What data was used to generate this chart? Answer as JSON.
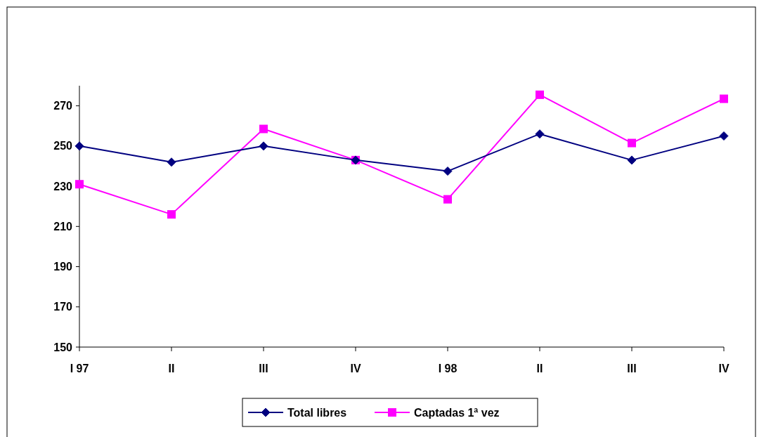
{
  "chart_data": {
    "type": "line",
    "categories": [
      "I 97",
      "II",
      "III",
      "IV",
      "I 98",
      "II",
      "III",
      "IV"
    ],
    "series": [
      {
        "name": "Total libres",
        "color": "#000080",
        "marker": "diamond",
        "values": [
          250,
          242,
          250,
          243,
          237.5,
          256,
          243,
          255
        ]
      },
      {
        "name": "Captadas 1ª vez",
        "color": "#ff00ff",
        "marker": "square",
        "values": [
          231,
          216,
          258.5,
          243,
          223.5,
          275.5,
          251.5,
          273.5
        ]
      }
    ],
    "ylim": [
      150,
      280
    ],
    "yticks": [
      150,
      170,
      190,
      210,
      230,
      250,
      270
    ],
    "grid": false,
    "legend": "bottom",
    "line_style": "solid"
  }
}
